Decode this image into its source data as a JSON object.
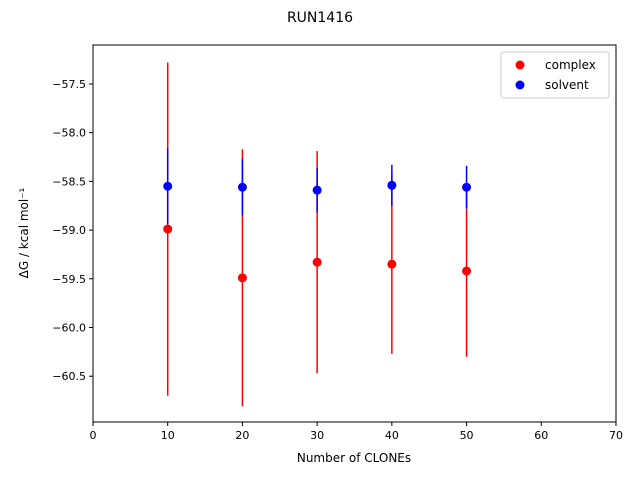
{
  "chart_data": {
    "type": "scatter",
    "title": "RUN1416",
    "xlabel": "Number of CLONEs",
    "ylabel": "ΔG / kcal mol⁻¹",
    "xlim": [
      0,
      70
    ],
    "ylim": [
      -60.97,
      -57.1
    ],
    "xticks": [
      0,
      10,
      20,
      30,
      40,
      50,
      60,
      70
    ],
    "yticks": [
      -57.5,
      -58.0,
      -58.5,
      -59.0,
      -59.5,
      -60.0,
      -60.5
    ],
    "x": [
      10,
      20,
      30,
      40,
      50
    ],
    "grid": false,
    "legend_position": "top-right",
    "series": [
      {
        "name": "complex",
        "color": "#ff0000",
        "values": [
          -58.99,
          -59.49,
          -59.33,
          -59.35,
          -59.42
        ],
        "errors": [
          1.71,
          1.32,
          1.14,
          0.92,
          0.88
        ]
      },
      {
        "name": "solvent",
        "color": "#0000ff",
        "values": [
          -58.55,
          -58.56,
          -58.59,
          -58.54,
          -58.56
        ],
        "errors": [
          0.39,
          0.29,
          0.23,
          0.21,
          0.22
        ]
      }
    ]
  }
}
